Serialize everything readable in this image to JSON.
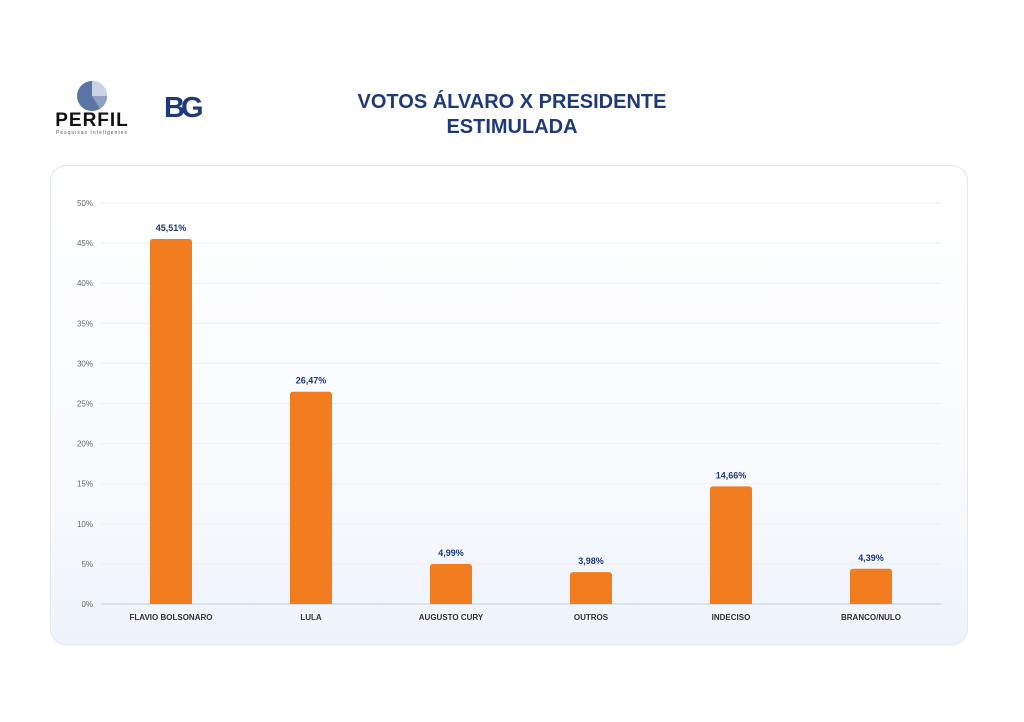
{
  "header": {
    "logo_perfil_text": "PERFIL",
    "logo_perfil_tagline": "Pesquisas Inteligentes",
    "logo_bg_text": "BG",
    "title_line1": "VOTOS ÁLVARO X PRESIDENTE",
    "title_line2": "ESTIMULADA"
  },
  "colors": {
    "bar": "#f27d21",
    "title": "#1f3a78",
    "data_label": "#1f3a78",
    "logo_blue": "#4a6aa8"
  },
  "chart_data": {
    "type": "bar",
    "title": "VOTOS ÁLVARO X PRESIDENTE ESTIMULADA",
    "categories": [
      "FLAVIO BOLSONARO",
      "LULA",
      "AUGUSTO CURY",
      "OUTROS",
      "INDECISO",
      "BRANCO/NULO"
    ],
    "values": [
      45.51,
      26.47,
      4.99,
      3.98,
      14.66,
      4.39
    ],
    "data_labels": [
      "45,51%",
      "26,47%",
      "4,99%",
      "3,98%",
      "14,66%",
      "4,39%"
    ],
    "ylim": [
      0,
      50
    ],
    "yticks": [
      0,
      5,
      10,
      15,
      20,
      25,
      30,
      35,
      40,
      45,
      50
    ],
    "ytick_labels": [
      "0%",
      "5%",
      "10%",
      "15%",
      "20%",
      "25%",
      "30%",
      "35%",
      "40%",
      "45%",
      "50%"
    ],
    "xlabel": "",
    "ylabel": "",
    "grid": true,
    "legend": "none"
  }
}
